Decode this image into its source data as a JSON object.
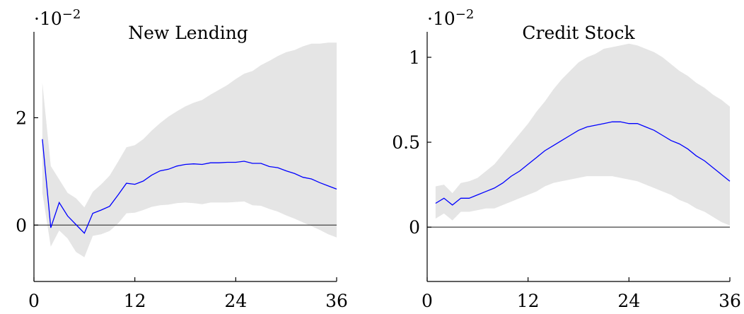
{
  "chart_data": [
    {
      "type": "line",
      "title": "New Lending",
      "scale_label": "·10",
      "scale_exp": "−2",
      "xlabel": "",
      "ylabel": "",
      "xlim": [
        0,
        36
      ],
      "ylim": [
        -1.05,
        3.6
      ],
      "xticks": [
        0,
        12,
        24,
        36
      ],
      "yticks": [
        0,
        2
      ],
      "xtick_labels": [
        "0",
        "12",
        "24",
        "36"
      ],
      "ytick_labels": [
        "0",
        "2"
      ],
      "zero_line": true,
      "line_color": "#0000ff",
      "band_color": "#e5e5e5",
      "series": [
        {
          "x": [
            1,
            2,
            3,
            4,
            5,
            6,
            7,
            8,
            9,
            10,
            11,
            12,
            13,
            14,
            15,
            16,
            17,
            18,
            19,
            20,
            21,
            22,
            23,
            24,
            25,
            26,
            27,
            28,
            29,
            30,
            31,
            32,
            33,
            34,
            35,
            36
          ],
          "values": [
            1.6,
            -0.05,
            0.42,
            0.17,
            0.01,
            -0.15,
            0.22,
            0.28,
            0.35,
            0.56,
            0.78,
            0.76,
            0.82,
            0.93,
            1.01,
            1.04,
            1.1,
            1.13,
            1.14,
            1.13,
            1.16,
            1.16,
            1.17,
            1.17,
            1.19,
            1.15,
            1.15,
            1.09,
            1.07,
            1.01,
            0.96,
            0.89,
            0.86,
            0.79,
            0.73,
            0.67
          ],
          "upper": [
            2.65,
            1.1,
            0.85,
            0.6,
            0.5,
            0.33,
            0.62,
            0.76,
            0.92,
            1.18,
            1.45,
            1.49,
            1.6,
            1.76,
            1.9,
            2.02,
            2.12,
            2.21,
            2.28,
            2.33,
            2.43,
            2.52,
            2.61,
            2.72,
            2.82,
            2.87,
            2.98,
            3.06,
            3.15,
            3.22,
            3.26,
            3.33,
            3.38,
            3.38,
            3.4,
            3.4
          ],
          "lower": [
            0.6,
            -0.4,
            -0.1,
            -0.25,
            -0.5,
            -0.6,
            -0.2,
            -0.17,
            -0.11,
            0.03,
            0.22,
            0.23,
            0.28,
            0.34,
            0.37,
            0.38,
            0.41,
            0.42,
            0.41,
            0.39,
            0.42,
            0.42,
            0.42,
            0.43,
            0.44,
            0.37,
            0.36,
            0.3,
            0.25,
            0.18,
            0.12,
            0.05,
            -0.02,
            -0.09,
            -0.17,
            -0.23
          ]
        }
      ]
    },
    {
      "type": "line",
      "title": "Credit Stock",
      "scale_label": "·10",
      "scale_exp": "−2",
      "xlabel": "",
      "ylabel": "",
      "xlim": [
        0,
        36
      ],
      "ylim": [
        -0.32,
        1.15
      ],
      "xticks": [
        0,
        12,
        24,
        36
      ],
      "yticks": [
        0,
        0.5,
        1
      ],
      "xtick_labels": [
        "0",
        "12",
        "24",
        "36"
      ],
      "ytick_labels": [
        "0",
        "0.5",
        "1"
      ],
      "zero_line": true,
      "line_color": "#0000ff",
      "band_color": "#e5e5e5",
      "series": [
        {
          "x": [
            1,
            2,
            3,
            4,
            5,
            6,
            7,
            8,
            9,
            10,
            11,
            12,
            13,
            14,
            15,
            16,
            17,
            18,
            19,
            20,
            21,
            22,
            23,
            24,
            25,
            26,
            27,
            28,
            29,
            30,
            31,
            32,
            33,
            34,
            35,
            36
          ],
          "values": [
            0.14,
            0.17,
            0.13,
            0.17,
            0.17,
            0.19,
            0.21,
            0.23,
            0.26,
            0.3,
            0.33,
            0.37,
            0.41,
            0.45,
            0.48,
            0.51,
            0.54,
            0.57,
            0.59,
            0.6,
            0.61,
            0.62,
            0.62,
            0.61,
            0.61,
            0.59,
            0.57,
            0.54,
            0.51,
            0.49,
            0.46,
            0.42,
            0.39,
            0.35,
            0.31,
            0.27
          ],
          "upper": [
            0.24,
            0.25,
            0.2,
            0.26,
            0.27,
            0.29,
            0.33,
            0.37,
            0.43,
            0.49,
            0.55,
            0.61,
            0.68,
            0.74,
            0.81,
            0.87,
            0.92,
            0.97,
            1.0,
            1.02,
            1.05,
            1.06,
            1.07,
            1.08,
            1.07,
            1.05,
            1.03,
            1.0,
            0.96,
            0.92,
            0.89,
            0.85,
            0.82,
            0.78,
            0.75,
            0.71
          ],
          "lower": [
            0.05,
            0.08,
            0.04,
            0.09,
            0.09,
            0.1,
            0.11,
            0.11,
            0.13,
            0.15,
            0.17,
            0.19,
            0.21,
            0.24,
            0.26,
            0.27,
            0.28,
            0.29,
            0.3,
            0.3,
            0.3,
            0.3,
            0.29,
            0.28,
            0.27,
            0.25,
            0.23,
            0.21,
            0.19,
            0.16,
            0.14,
            0.11,
            0.09,
            0.06,
            0.03,
            0.01
          ]
        }
      ]
    }
  ]
}
